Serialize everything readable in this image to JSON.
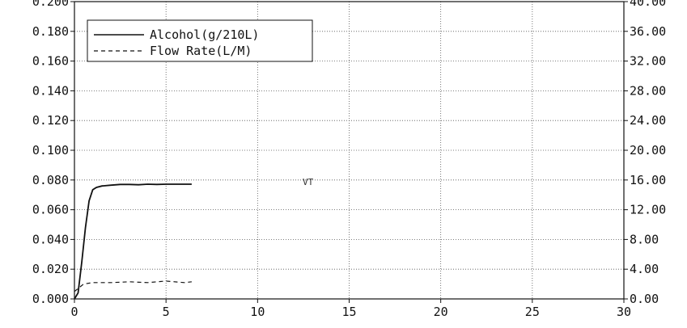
{
  "chart_data": {
    "type": "line",
    "x_ticks": [
      "0",
      "5",
      "10",
      "15",
      "20",
      "25",
      "30"
    ],
    "xlim": [
      0,
      30
    ],
    "left_ticks": [
      "0.000",
      "0.020",
      "0.040",
      "0.060",
      "0.080",
      "0.100",
      "0.120",
      "0.140",
      "0.160",
      "0.180",
      "0.200"
    ],
    "left_ylim": [
      0,
      0.2
    ],
    "right_ticks": [
      "0.00",
      "4.00",
      "8.00",
      "12.00",
      "16.00",
      "20.00",
      "24.00",
      "28.00",
      "32.00",
      "36.00",
      "40.00"
    ],
    "right_ylim": [
      0,
      40
    ],
    "grid": true,
    "legend_position": "top-left",
    "series": [
      {
        "name": "Alcohol(g/210L)",
        "axis": "left",
        "style": "solid",
        "color": "#111111",
        "x": [
          0,
          0.2,
          0.4,
          0.6,
          0.8,
          1.0,
          1.2,
          1.5,
          2.0,
          2.5,
          3.0,
          3.5,
          4.0,
          4.5,
          5.0,
          5.5,
          6.0,
          6.4
        ],
        "y": [
          0,
          0.004,
          0.025,
          0.048,
          0.066,
          0.0735,
          0.075,
          0.076,
          0.0765,
          0.077,
          0.077,
          0.0768,
          0.0772,
          0.077,
          0.0772,
          0.0772,
          0.0772,
          0.0772
        ]
      },
      {
        "name": "Flow Rate(L/M)",
        "axis": "right",
        "style": "dashed",
        "color": "#111111",
        "x": [
          0,
          0.5,
          1.0,
          2.0,
          3.0,
          4.0,
          5.0,
          6.0,
          6.4
        ],
        "y": [
          1.0,
          2.0,
          2.2,
          2.2,
          2.3,
          2.2,
          2.4,
          2.2,
          2.3
        ]
      }
    ],
    "annotations": [
      "VT"
    ]
  }
}
